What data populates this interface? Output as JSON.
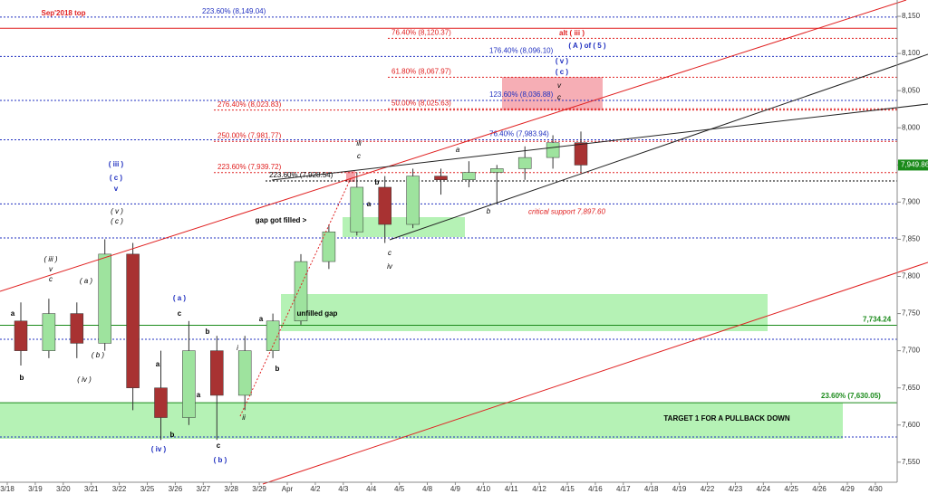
{
  "chart_data": {
    "type": "candlestick",
    "categories": [
      "3/18",
      "3/19",
      "3/20",
      "3/21",
      "3/22",
      "3/25",
      "3/26",
      "3/27",
      "3/28",
      "3/29",
      "Apr",
      "4/2",
      "4/3",
      "4/4",
      "4/5",
      "4/8",
      "4/9",
      "4/10",
      "4/11",
      "4/12",
      "4/15",
      "4/16",
      "4/17",
      "4/18",
      "4/19",
      "4/22",
      "4/23",
      "4/24",
      "4/25",
      "4/26",
      "4/29",
      "4/30"
    ],
    "open": [
      7740,
      7700,
      7750,
      7710,
      7830,
      7650,
      7610,
      7700,
      7640,
      7700,
      7740,
      7820,
      7860,
      7920,
      7870,
      7935,
      7930,
      7940,
      7945,
      7960,
      7980,
      null,
      null,
      null,
      null,
      null,
      null,
      null,
      null,
      null,
      null,
      null
    ],
    "high": [
      7765,
      7770,
      7765,
      7850,
      7845,
      7700,
      7740,
      7720,
      7720,
      7750,
      7830,
      7870,
      7940,
      7935,
      7945,
      7945,
      7955,
      7950,
      7975,
      7990,
      7995,
      null,
      null,
      null,
      null,
      null,
      null,
      null,
      null,
      null,
      null,
      null
    ],
    "low": [
      7680,
      7690,
      7690,
      7700,
      7620,
      7580,
      7600,
      7580,
      7620,
      7690,
      7735,
      7810,
      7855,
      7845,
      7865,
      7910,
      7920,
      7897,
      7930,
      7945,
      7940,
      null,
      null,
      null,
      null,
      null,
      null,
      null,
      null,
      null,
      null,
      null
    ],
    "close": [
      7700,
      7750,
      7710,
      7830,
      7650,
      7610,
      7700,
      7640,
      7700,
      7740,
      7820,
      7860,
      7920,
      7870,
      7935,
      7930,
      7940,
      7945,
      7960,
      7980,
      7949.86,
      null,
      null,
      null,
      null,
      null,
      null,
      null,
      null,
      null,
      null,
      null
    ],
    "up_color": "#9ee39e",
    "down_color": "#a83232",
    "ylim": [
      7523,
      8172
    ],
    "yticks": [
      {
        "value": 7550,
        "label": "7,550"
      },
      {
        "value": 7600,
        "label": "7,600"
      },
      {
        "value": 7650,
        "label": "7,650"
      },
      {
        "value": 7700,
        "label": "7,700"
      },
      {
        "value": 7750,
        "label": "7,750"
      },
      {
        "value": 7800,
        "label": "7,800"
      },
      {
        "value": 7850,
        "label": "7,850"
      },
      {
        "value": 7900,
        "label": "7,900"
      },
      {
        "value": 7950,
        "label": "7,950"
      },
      {
        "value": 8000,
        "label": "8,000"
      },
      {
        "value": 8050,
        "label": "8,050"
      },
      {
        "value": 8100,
        "label": "8,100"
      },
      {
        "value": 8150,
        "label": "8,150"
      }
    ],
    "last_price": {
      "value": 7949.86,
      "label": "7,949.86"
    },
    "levels": [
      {
        "value": 8134,
        "label": "Sep'2018 top",
        "color": "#e02020"
      },
      {
        "value": 8149.04,
        "label": "223.60% (8,149.04)",
        "color": "#2030c0"
      },
      {
        "value": 8120.37,
        "label": "76.40% (8,120.37)",
        "color": "#e02020"
      },
      {
        "value": 8096.1,
        "label": "176.40% (8,096.10)",
        "color": "#2030c0"
      },
      {
        "value": 8067.97,
        "label": "61.80% (8,067.97)",
        "color": "#e02020"
      },
      {
        "value": 8036.88,
        "label": "123.60% (8,036.88)",
        "color": "#2030c0"
      },
      {
        "value": 8023.83,
        "label": "276.40% (8,023.83)",
        "color": "#e02020"
      },
      {
        "value": 8025.63,
        "label": "50.00% (8,025.63)",
        "color": "#e02020"
      },
      {
        "value": 7981.77,
        "label": "250.00% (7,981.77)",
        "color": "#e02020"
      },
      {
        "value": 7983.94,
        "label": "76.40% (7,983.94)",
        "color": "#2030c0"
      },
      {
        "value": 7939.72,
        "label": "223.60% (7,939.72)",
        "color": "#e02020"
      },
      {
        "value": 7928.54,
        "label": "223.60% (7,928.54)",
        "color": "#000000"
      },
      {
        "value": 7897.6,
        "label": "critical support 7,897.60",
        "color": "#e02020"
      },
      {
        "value": 7734.24,
        "label": "7,734.24",
        "color": "#1a8a1a"
      },
      {
        "value": 7630.05,
        "label": "23.60% (7,630.05)",
        "color": "#1a8a1a"
      }
    ],
    "annotations": [
      {
        "text": "alt ( iii )",
        "color": "#e02020"
      },
      {
        "text": "( A ) of ( 5 )",
        "color": "#2030c0"
      },
      {
        "text": "( v )",
        "color": "#2030c0"
      },
      {
        "text": "( c )",
        "color": "#2030c0"
      },
      {
        "text": "v",
        "color": "#000000"
      },
      {
        "text": "c",
        "color": "#000000"
      },
      {
        "text": "( iii )",
        "color": "#2030c0"
      },
      {
        "text": "( c )",
        "color": "#2030c0"
      },
      {
        "text": "v",
        "color": "#2030c0"
      },
      {
        "text": "( v )",
        "color": "#000000"
      },
      {
        "text": "( c )",
        "color": "#000000"
      },
      {
        "text": "( iii )",
        "color": "#000000"
      },
      {
        "text": "v",
        "color": "#000000"
      },
      {
        "text": "c",
        "color": "#000000"
      },
      {
        "text": "( a )",
        "color": "#000000"
      },
      {
        "text": "a",
        "color": "#000000"
      },
      {
        "text": "( b )",
        "color": "#000000"
      },
      {
        "text": "b",
        "color": "#000000"
      },
      {
        "text": "( iv )",
        "color": "#000000"
      },
      {
        "text": "( a )",
        "color": "#2030c0"
      },
      {
        "text": "c",
        "color": "#000000"
      },
      {
        "text": "b",
        "color": "#000000"
      },
      {
        "text": "a",
        "color": "#000000"
      },
      {
        "text": "a",
        "color": "#000000"
      },
      {
        "text": "b",
        "color": "#000000"
      },
      {
        "text": "( iv )",
        "color": "#2030c0"
      },
      {
        "text": "c",
        "color": "#000000"
      },
      {
        "text": "( b )",
        "color": "#2030c0"
      },
      {
        "text": "i",
        "color": "#000000"
      },
      {
        "text": "ii",
        "color": "#000000"
      },
      {
        "text": "a",
        "color": "#000000"
      },
      {
        "text": "b",
        "color": "#000000"
      },
      {
        "text": "iii",
        "color": "#000000"
      },
      {
        "text": "c",
        "color": "#000000"
      },
      {
        "text": "b",
        "color": "#000000"
      },
      {
        "text": "a",
        "color": "#000000"
      },
      {
        "text": "c",
        "color": "#000000"
      },
      {
        "text": "iv",
        "color": "#000000"
      },
      {
        "text": "a",
        "color": "#000000"
      },
      {
        "text": "b",
        "color": "#000000"
      },
      {
        "text": "gap got filled >",
        "color": "#000000"
      },
      {
        "text": "unfilled gap",
        "color": "#000000"
      },
      {
        "text": "TARGET 1 FOR A PULLBACK DOWN",
        "color": "#000000"
      }
    ]
  }
}
